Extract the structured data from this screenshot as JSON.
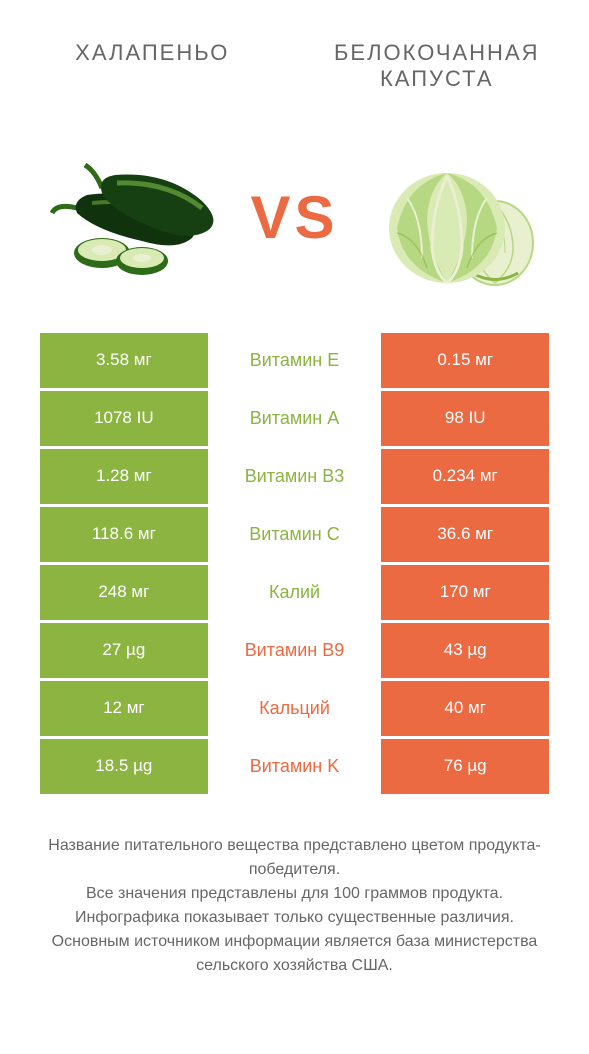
{
  "header": {
    "left_title": "ХАЛАПЕНЬО",
    "right_title": "БЕЛОКОЧАННАЯ КАПУСТА"
  },
  "vs": "VS",
  "colors": {
    "green": "#8cb441",
    "orange": "#ec6a42",
    "jalapeno_dark": "#10320c",
    "jalapeno_mid": "#2d6b18",
    "jalapeno_light": "#6ca83e",
    "cabbage_light": "#d9eab5",
    "cabbage_mid": "#b7d882",
    "cabbage_dark": "#8cb441",
    "text": "#666666"
  },
  "rows": [
    {
      "left": "3.58 мг",
      "label": "Витамин E",
      "right": "0.15 мг",
      "winner": "left"
    },
    {
      "left": "1078 IU",
      "label": "Витамин A",
      "right": "98 IU",
      "winner": "left"
    },
    {
      "left": "1.28 мг",
      "label": "Витамин B3",
      "right": "0.234 мг",
      "winner": "left"
    },
    {
      "left": "118.6 мг",
      "label": "Витамин C",
      "right": "36.6 мг",
      "winner": "left"
    },
    {
      "left": "248 мг",
      "label": "Калий",
      "right": "170 мг",
      "winner": "left"
    },
    {
      "left": "27 µg",
      "label": "Витамин B9",
      "right": "43 µg",
      "winner": "right"
    },
    {
      "left": "12 мг",
      "label": "Кальций",
      "right": "40 мг",
      "winner": "right"
    },
    {
      "left": "18.5 µg",
      "label": "Витамин K",
      "right": "76 µg",
      "winner": "right"
    }
  ],
  "footer": {
    "line1": "Название питательного вещества представлено цветом продукта-победителя.",
    "line2": "Все значения представлены для 100 граммов продукта.",
    "line3": "Инфографика показывает только существенные различия.",
    "line4": "Основным источником информации является база министерства сельского хозяйства США."
  }
}
